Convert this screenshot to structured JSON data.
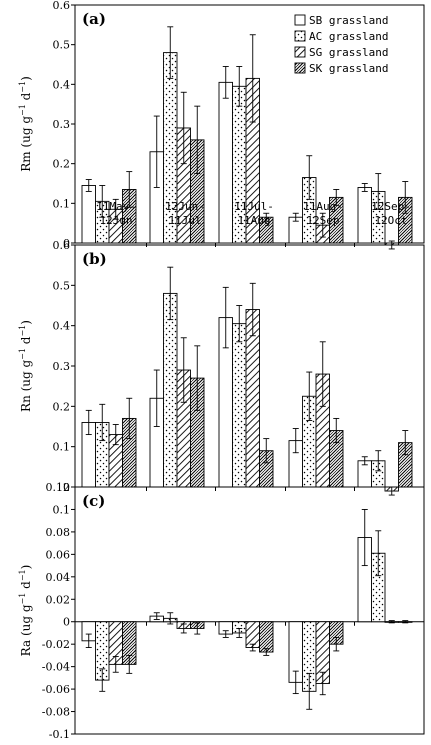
{
  "chart_data": [
    {
      "type": "bar",
      "panel_label": "(a)",
      "ylabel_main": "Rm (ug g",
      "ylabel_sup1": "−1",
      "ylabel_mid": " d",
      "ylabel_sup2": "−1",
      "ylabel_end": ")",
      "ylim": [
        0,
        0.6
      ],
      "yticks": [
        "0",
        "0.1",
        "0.2",
        "0.3",
        "0.4",
        "0.5",
        "0.6"
      ],
      "categories": [
        [
          "11May-",
          "12Jun"
        ],
        [
          "12Jun-",
          "11Jul"
        ],
        [
          "11Jul-",
          "11Aug"
        ],
        [
          "11Aug-",
          "12Sep"
        ],
        [
          "12Sep-",
          "12Oct"
        ]
      ],
      "legend": [
        "SB grassland",
        "AC grassland",
        "SG grassland",
        "SK grassland"
      ],
      "series": [
        {
          "name": "SB grassland",
          "values": [
            0.145,
            0.23,
            0.405,
            0.065,
            0.14
          ],
          "errors": [
            0.015,
            0.09,
            0.04,
            0.01,
            0.01
          ]
        },
        {
          "name": "AC grassland",
          "values": [
            0.105,
            0.48,
            0.395,
            0.165,
            0.13
          ],
          "errors": [
            0.04,
            0.065,
            0.05,
            0.055,
            0.045
          ]
        },
        {
          "name": "SG grassland",
          "values": [
            0.085,
            0.29,
            0.415,
            0.045,
            -0.005
          ],
          "errors": [
            0.025,
            0.09,
            0.11,
            0.03,
            0.01
          ]
        },
        {
          "name": "SK grassland",
          "values": [
            0.135,
            0.26,
            0.065,
            0.115,
            0.115
          ],
          "errors": [
            0.045,
            0.085,
            0.01,
            0.02,
            0.04
          ]
        }
      ]
    },
    {
      "type": "bar",
      "panel_label": "(b)",
      "ylabel_main": "Rn (ug g",
      "ylabel_sup1": "−1",
      "ylabel_mid": " d",
      "ylabel_sup2": "−1",
      "ylabel_end": ")",
      "ylim": [
        0,
        0.6
      ],
      "yticks": [
        "0",
        "0.1",
        "0.2",
        "0.3",
        "0.4",
        "0.5",
        "0.6"
      ],
      "series": [
        {
          "name": "SB grassland",
          "values": [
            0.16,
            0.22,
            0.42,
            0.115,
            0.065
          ],
          "errors": [
            0.03,
            0.07,
            0.075,
            0.03,
            0.01
          ]
        },
        {
          "name": "AC grassland",
          "values": [
            0.16,
            0.48,
            0.405,
            0.225,
            0.065
          ],
          "errors": [
            0.045,
            0.065,
            0.045,
            0.06,
            0.025
          ]
        },
        {
          "name": "SG grassland",
          "values": [
            0.13,
            0.29,
            0.44,
            0.28,
            -0.01
          ],
          "errors": [
            0.025,
            0.08,
            0.065,
            0.08,
            0.01
          ]
        },
        {
          "name": "SK grassland",
          "values": [
            0.17,
            0.27,
            0.09,
            0.14,
            0.11
          ],
          "errors": [
            0.05,
            0.08,
            0.03,
            0.03,
            0.03
          ]
        }
      ]
    },
    {
      "type": "bar",
      "panel_label": "(c)",
      "ylabel_main": "Ra (ug g",
      "ylabel_sup1": "−1",
      "ylabel_mid": " d",
      "ylabel_sup2": "−1",
      "ylabel_end": ")",
      "ylim": [
        -0.1,
        0.12
      ],
      "yticks": [
        "-0.1",
        "-0.08",
        "-0.06",
        "-0.04",
        "-0.02",
        "0",
        "0.02",
        "0.04",
        "0.06",
        "0.08",
        "0.1",
        "0.12"
      ],
      "series": [
        {
          "name": "SB grassland",
          "values": [
            -0.017,
            0.005,
            -0.011,
            -0.054,
            0.075
          ],
          "errors": [
            0.006,
            0.003,
            0.003,
            0.01,
            0.025
          ]
        },
        {
          "name": "AC grassland",
          "values": [
            -0.052,
            0.003,
            -0.01,
            -0.062,
            0.061
          ],
          "errors": [
            0.01,
            0.005,
            0.004,
            0.016,
            0.02
          ]
        },
        {
          "name": "SG grassland",
          "values": [
            -0.038,
            -0.006,
            -0.023,
            -0.055,
            0.0
          ],
          "errors": [
            0.007,
            0.004,
            0.003,
            0.01,
            0.001
          ]
        },
        {
          "name": "SK grassland",
          "values": [
            -0.038,
            -0.006,
            -0.027,
            -0.02,
            0.0
          ],
          "errors": [
            0.008,
            0.005,
            0.003,
            0.006,
            0.001
          ]
        }
      ]
    }
  ]
}
